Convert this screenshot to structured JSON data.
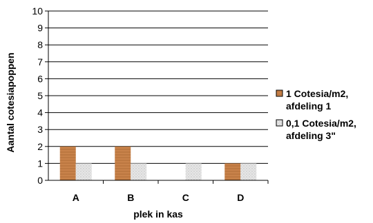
{
  "chart_data": {
    "type": "bar",
    "categories": [
      "A",
      "B",
      "C",
      "D"
    ],
    "series": [
      {
        "name": [
          "1 Cotesia/m2,",
          "afdeling 1"
        ],
        "values": [
          2,
          2,
          0,
          1
        ],
        "color": "#c8824a"
      },
      {
        "name": [
          "0,1 Cotesia/m2,",
          "afdeling 3\""
        ],
        "values": [
          1,
          1,
          1,
          1
        ],
        "color": "#d9d9d9"
      }
    ],
    "xlabel": "plek in kas",
    "ylabel": "Aantal cotesiapoppen",
    "ylim": [
      0,
      10
    ],
    "yticks": [
      0,
      1,
      2,
      3,
      4,
      5,
      6,
      7,
      8,
      9,
      10
    ],
    "grid": true,
    "legend_position": "right"
  }
}
